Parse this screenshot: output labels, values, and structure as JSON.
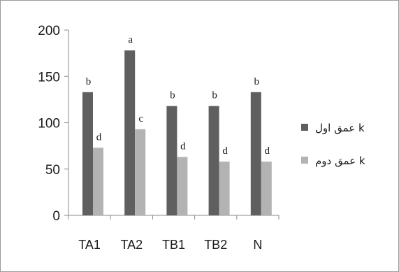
{
  "chart_data": {
    "type": "bar",
    "categories": [
      "TA1",
      "TA2",
      "TB1",
      "TB2",
      "N"
    ],
    "series": [
      {
        "name": "عمق اول k",
        "color": "#5f5f5f",
        "values": [
          133,
          178,
          118,
          118,
          133
        ],
        "labels": [
          "b",
          "a",
          "b",
          "b",
          "b"
        ]
      },
      {
        "name": "عمق دوم k",
        "color": "#b3b3b3",
        "values": [
          73,
          93,
          63,
          58,
          58
        ],
        "labels": [
          "d",
          "c",
          "d",
          "d",
          "d"
        ]
      }
    ],
    "ylim": [
      0,
      200
    ],
    "yticks": [
      "0",
      "50",
      "100",
      "150",
      "200"
    ],
    "title": "",
    "xlabel": "",
    "ylabel": "",
    "grid": false,
    "legend_position": "right"
  }
}
